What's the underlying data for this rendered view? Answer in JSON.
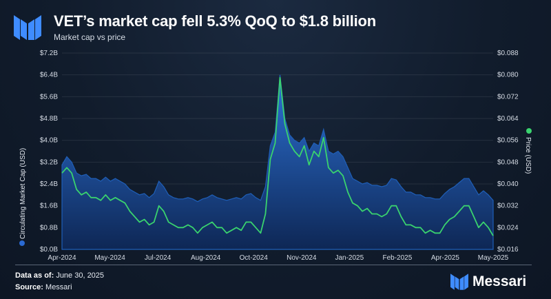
{
  "header": {
    "title": "VET’s market cap fell 5.3% QoQ to $1.8 billion",
    "subtitle": "Market cap vs price",
    "logo_icon": "messari-logo-icon"
  },
  "footer": {
    "data_as_of_label": "Data as of:",
    "data_as_of_value": "June 30, 2025",
    "source_label": "Source:",
    "source_value": "Messari",
    "brand": "Messari"
  },
  "colors": {
    "market_cap": "#1f5fb8",
    "market_cap_dark": "#0f2b5a",
    "price": "#3ad36e",
    "legend_dot": "#2a6ad2"
  },
  "chart_data": {
    "type": "area",
    "x_tick_labels": [
      "Apr-2024",
      "May-2024",
      "Jul-2024",
      "Aug-2024",
      "Oct-2024",
      "Nov-2024",
      "Jan-2025",
      "Feb-2025",
      "Apr-2025",
      "May-2025"
    ],
    "left_axis": {
      "label": "Circulating Market Cap (USD)",
      "ticks": [
        "$0.0B",
        "$0.8B",
        "$1.6B",
        "$2.4B",
        "$3.2B",
        "$4.0B",
        "$4.8B",
        "$5.6B",
        "$6.4B",
        "$7.2B"
      ],
      "range": [
        0,
        7.2
      ]
    },
    "right_axis": {
      "label": "Price (USD)",
      "ticks": [
        "$0.016",
        "$0.024",
        "$0.032",
        "$0.040",
        "$0.048",
        "$0.056",
        "$0.064",
        "$0.072",
        "$0.080",
        "$0.088"
      ],
      "range": [
        0.016,
        0.088
      ]
    },
    "series": [
      {
        "name": "Circulating Market Cap (USD)",
        "axis": "left",
        "values": [
          3.1,
          3.4,
          3.2,
          2.8,
          2.7,
          2.75,
          2.6,
          2.6,
          2.5,
          2.65,
          2.5,
          2.6,
          2.5,
          2.4,
          2.2,
          2.1,
          2.0,
          2.05,
          1.9,
          2.05,
          2.5,
          2.3,
          2.0,
          1.9,
          1.85,
          1.85,
          1.9,
          1.85,
          1.75,
          1.85,
          1.9,
          2.0,
          1.9,
          1.85,
          1.8,
          1.85,
          1.9,
          1.85,
          2.0,
          2.05,
          1.9,
          1.8,
          2.3,
          3.8,
          4.3,
          6.4,
          4.8,
          4.2,
          4.0,
          3.9,
          4.1,
          3.6,
          3.9,
          3.8,
          4.4,
          3.6,
          3.5,
          3.6,
          3.4,
          3.0,
          2.6,
          2.5,
          2.4,
          2.45,
          2.35,
          2.35,
          2.3,
          2.35,
          2.6,
          2.55,
          2.3,
          2.1,
          2.1,
          2.0,
          2.0,
          1.9,
          1.9,
          1.85,
          1.85,
          2.05,
          2.2,
          2.3,
          2.45,
          2.6,
          2.6,
          2.3,
          2.0,
          2.15,
          2.0,
          1.8
        ]
      },
      {
        "name": "Price (USD)",
        "axis": "right",
        "values": [
          0.044,
          0.046,
          0.044,
          0.038,
          0.036,
          0.037,
          0.035,
          0.035,
          0.034,
          0.036,
          0.034,
          0.035,
          0.034,
          0.033,
          0.03,
          0.028,
          0.026,
          0.027,
          0.025,
          0.026,
          0.032,
          0.03,
          0.026,
          0.025,
          0.024,
          0.024,
          0.025,
          0.024,
          0.022,
          0.024,
          0.025,
          0.026,
          0.024,
          0.024,
          0.022,
          0.023,
          0.024,
          0.023,
          0.026,
          0.026,
          0.024,
          0.022,
          0.029,
          0.049,
          0.055,
          0.079,
          0.062,
          0.055,
          0.052,
          0.05,
          0.054,
          0.047,
          0.052,
          0.05,
          0.057,
          0.046,
          0.044,
          0.045,
          0.043,
          0.037,
          0.033,
          0.032,
          0.03,
          0.031,
          0.029,
          0.029,
          0.028,
          0.029,
          0.032,
          0.032,
          0.028,
          0.025,
          0.025,
          0.024,
          0.024,
          0.022,
          0.023,
          0.022,
          0.022,
          0.025,
          0.027,
          0.028,
          0.03,
          0.032,
          0.032,
          0.028,
          0.024,
          0.026,
          0.024,
          0.021
        ]
      }
    ],
    "grid": true,
    "legend": "axis titles with color dots"
  }
}
